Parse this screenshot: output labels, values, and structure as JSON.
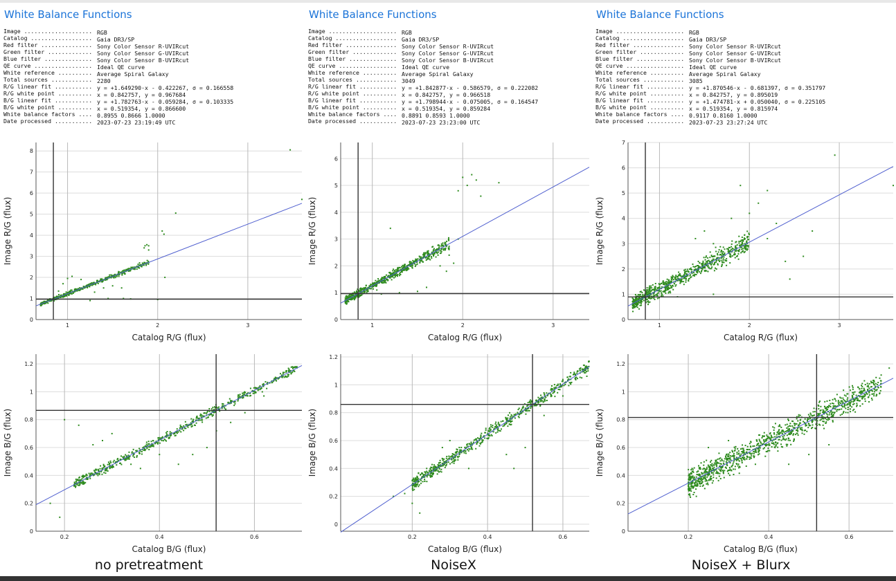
{
  "panels": [
    {
      "title": "White Balance Functions",
      "caption": "no pretreatment",
      "info": [
        {
          "k": "Image ....................",
          "v": "RGB"
        },
        {
          "k": "Catalog ..................",
          "v": "Gaia DR3/SP"
        },
        {
          "k": "Red filter ...............",
          "v": "Sony Color Sensor R-UVIRcut"
        },
        {
          "k": "Green filter .............",
          "v": "Sony Color Sensor G-UVIRcut"
        },
        {
          "k": "Blue filter ..............",
          "v": "Sony Color Sensor B-UVIRcut"
        },
        {
          "k": "QE curve .................",
          "v": "Ideal QE curve"
        },
        {
          "k": "White reference ..........",
          "v": "Average Spiral Galaxy"
        },
        {
          "k": "Total sources ............",
          "v": "2280"
        },
        {
          "k": "R/G linear fit ...........",
          "v": "y = +1.649290·x - 0.422267, σ = 0.166558"
        },
        {
          "k": "R/G white point ..........",
          "v": "x = 0.842757, y = 0.967684"
        },
        {
          "k": "B/G linear fit ...........",
          "v": "y = +1.782763·x - 0.059284, σ = 0.103335"
        },
        {
          "k": "B/G white point ..........",
          "v": "x = 0.519354, y = 0.866600"
        },
        {
          "k": "White balance factors ....",
          "v": "0.8955 0.8666 1.0000"
        },
        {
          "k": "Date processed ...........",
          "v": "2023-07-23 23:19:49 UTC"
        }
      ]
    },
    {
      "title": "White Balance Functions",
      "caption": "NoiseX",
      "info": [
        {
          "k": "Image ....................",
          "v": "RGB"
        },
        {
          "k": "Catalog ..................",
          "v": "Gaia DR3/SP"
        },
        {
          "k": "Red filter ...............",
          "v": "Sony Color Sensor R-UVIRcut"
        },
        {
          "k": "Green filter .............",
          "v": "Sony Color Sensor G-UVIRcut"
        },
        {
          "k": "Blue filter ..............",
          "v": "Sony Color Sensor B-UVIRcut"
        },
        {
          "k": "QE curve .................",
          "v": "Ideal QE curve"
        },
        {
          "k": "White reference ..........",
          "v": "Average Spiral Galaxy"
        },
        {
          "k": "Total sources ............",
          "v": "3049"
        },
        {
          "k": "R/G linear fit ...........",
          "v": "y = +1.842877·x - 0.586579, σ = 0.222082"
        },
        {
          "k": "R/G white point ..........",
          "v": "x = 0.842757, y = 0.966518"
        },
        {
          "k": "B/G linear fit ...........",
          "v": "y = +1.798944·x - 0.075005, σ = 0.164547"
        },
        {
          "k": "B/G white point ..........",
          "v": "x = 0.519354, y = 0.859284"
        },
        {
          "k": "White balance factors ....",
          "v": "0.8891 0.8593 1.0000"
        },
        {
          "k": "Date processed ...........",
          "v": "2023-07-23 23:23:00 UTC"
        }
      ]
    },
    {
      "title": "White Balance Functions",
      "caption": "NoiseX + Blurx",
      "info": [
        {
          "k": "Image ....................",
          "v": "RGB"
        },
        {
          "k": "Catalog ..................",
          "v": "Gaia DR3/SP"
        },
        {
          "k": "Red filter ...............",
          "v": "Sony Color Sensor R-UVIRcut"
        },
        {
          "k": "Green filter .............",
          "v": "Sony Color Sensor G-UVIRcut"
        },
        {
          "k": "Blue filter ..............",
          "v": "Sony Color Sensor B-UVIRcut"
        },
        {
          "k": "QE curve .................",
          "v": "Ideal QE curve"
        },
        {
          "k": "White reference ..........",
          "v": "Average Spiral Galaxy"
        },
        {
          "k": "Total sources ............",
          "v": "3085"
        },
        {
          "k": "R/G linear fit ...........",
          "v": "y = +1.870546·x - 0.681397, σ = 0.351797"
        },
        {
          "k": "R/G white point ..........",
          "v": "x = 0.842757, y = 0.895019"
        },
        {
          "k": "B/G linear fit ...........",
          "v": "y = +1.474781·x + 0.050040, σ = 0.225105"
        },
        {
          "k": "B/G white point ..........",
          "v": "x = 0.519354, y = 0.815974"
        },
        {
          "k": "White balance factors ....",
          "v": "0.9117 0.8160 1.0000"
        },
        {
          "k": "Date processed ...........",
          "v": "2023-07-23 23:27:24 UTC"
        }
      ]
    }
  ],
  "chart_data": [
    {
      "type": "scatter",
      "panel": 0,
      "xlabel": "Catalog R/G (flux)",
      "ylabel": "Image R/G (flux)",
      "xlim": [
        0.65,
        3.6
      ],
      "ylim": [
        0,
        8.4
      ],
      "xticks": [
        1,
        2,
        3
      ],
      "yticks": [
        0,
        1,
        2,
        3,
        4,
        5,
        6,
        7,
        8
      ],
      "fit": {
        "slope": 1.64929,
        "intercept": -0.422267,
        "sigma": 0.166558
      },
      "white_point": {
        "x": 0.842757,
        "y": 0.967684
      },
      "series": [],
      "point_color": "#2e8b1e",
      "line_color": "#4f5fcf",
      "cluster": {
        "x": [
          0.7,
          1.9
        ],
        "spread": 0.06,
        "n": 450
      },
      "points": [
        [
          1.9,
          3.5
        ],
        [
          1.88,
          3.55
        ],
        [
          1.86,
          3.5
        ],
        [
          1.9,
          3.3
        ],
        [
          1.85,
          3.4
        ],
        [
          2.05,
          4.2
        ],
        [
          2.2,
          5.05
        ],
        [
          2.07,
          4.05
        ],
        [
          1.6,
          1.5
        ],
        [
          1.62,
          1.0
        ],
        [
          1.5,
          1.6
        ],
        [
          1.4,
          1.5
        ],
        [
          1.3,
          1.3
        ],
        [
          1.25,
          0.9
        ],
        [
          1.45,
          1.0
        ],
        [
          2.0,
          0.95
        ],
        [
          2.08,
          2.0
        ],
        [
          1.0,
          1.95
        ],
        [
          0.95,
          1.7
        ],
        [
          1.05,
          2.05
        ],
        [
          3.47,
          8.05
        ],
        [
          3.6,
          5.7
        ],
        [
          1.15,
          1.9
        ],
        [
          0.9,
          1.35
        ],
        [
          1.7,
          0.98
        ]
      ]
    },
    {
      "type": "scatter",
      "panel": 0,
      "xlabel": "Catalog B/G (flux)",
      "ylabel": "Image B/G (flux)",
      "xlim": [
        0.14,
        0.7
      ],
      "ylim": [
        0,
        1.27
      ],
      "xticks": [
        0.2,
        0.4,
        0.6
      ],
      "yticks": [
        0,
        0.2,
        0.4,
        0.6,
        0.8,
        1,
        1.2
      ],
      "fit": {
        "slope": 1.782763,
        "intercept": -0.059284,
        "sigma": 0.103335
      },
      "white_point": {
        "x": 0.519354,
        "y": 0.8666
      },
      "series": [],
      "point_color": "#2e8b1e",
      "line_color": "#4f5fcf",
      "cluster": {
        "x": [
          0.22,
          0.69
        ],
        "spread": 0.022,
        "n": 600
      },
      "points": [
        [
          0.2,
          0.8
        ],
        [
          0.23,
          0.76
        ],
        [
          0.19,
          0.1
        ],
        [
          0.17,
          0.2
        ],
        [
          0.26,
          0.62
        ],
        [
          0.28,
          0.65
        ],
        [
          0.3,
          0.7
        ],
        [
          0.47,
          0.55
        ],
        [
          0.5,
          0.6
        ],
        [
          0.44,
          0.48
        ],
        [
          0.52,
          0.72
        ],
        [
          0.58,
          0.85
        ],
        [
          0.62,
          0.97
        ],
        [
          0.68,
          1.14
        ],
        [
          0.34,
          0.48
        ],
        [
          0.36,
          0.45
        ],
        [
          0.4,
          0.55
        ],
        [
          0.55,
          0.78
        ]
      ]
    },
    {
      "type": "scatter",
      "panel": 1,
      "xlabel": "Catalog R/G (flux)",
      "ylabel": "Image R/G (flux)",
      "xlim": [
        0.65,
        3.4
      ],
      "ylim": [
        0,
        6.6
      ],
      "xticks": [
        1,
        2,
        3
      ],
      "yticks": [
        0,
        1,
        2,
        3,
        4,
        5,
        6
      ],
      "fit": {
        "slope": 1.842877,
        "intercept": -0.586579,
        "sigma": 0.222082
      },
      "white_point": {
        "x": 0.842757,
        "y": 0.966518
      },
      "series": [],
      "point_color": "#2e8b1e",
      "line_color": "#4f5fcf",
      "cluster": {
        "x": [
          0.7,
          1.85
        ],
        "spread": 0.1,
        "n": 650
      },
      "points": [
        [
          2.0,
          5.3
        ],
        [
          2.1,
          5.4
        ],
        [
          2.05,
          5.0
        ],
        [
          2.15,
          5.2
        ],
        [
          1.95,
          4.8
        ],
        [
          2.4,
          5.1
        ],
        [
          2.2,
          4.6
        ],
        [
          1.95,
          3.0
        ],
        [
          1.78,
          2.85
        ],
        [
          1.82,
          1.8
        ],
        [
          1.9,
          2.1
        ],
        [
          1.85,
          2.4
        ],
        [
          1.2,
          3.4
        ],
        [
          1.3,
          1.0
        ],
        [
          1.5,
          1.05
        ],
        [
          1.05,
          1.1
        ],
        [
          1.1,
          0.95
        ],
        [
          1.6,
          1.2
        ],
        [
          1.75,
          2.0
        ]
      ]
    },
    {
      "type": "scatter",
      "panel": 1,
      "xlabel": "Catalog B/G (flux)",
      "ylabel": "Image B/G (flux)",
      "xlim": [
        0.01,
        0.67
      ],
      "ylim": [
        -0.05,
        1.22
      ],
      "xticks": [
        0.2,
        0.4,
        0.6
      ],
      "yticks": [
        0,
        0.2,
        0.4,
        0.6,
        0.8,
        1,
        1.2
      ],
      "fit": {
        "slope": 1.798944,
        "intercept": -0.075005,
        "sigma": 0.164547
      },
      "white_point": {
        "x": 0.519354,
        "y": 0.859284
      },
      "series": [],
      "point_color": "#2e8b1e",
      "line_color": "#4f5fcf",
      "cluster": {
        "x": [
          0.2,
          0.67
        ],
        "spread": 0.03,
        "n": 650
      },
      "points": [
        [
          0.15,
          0.2
        ],
        [
          0.18,
          0.22
        ],
        [
          0.2,
          0.15
        ],
        [
          0.22,
          0.08
        ],
        [
          0.3,
          0.6
        ],
        [
          0.28,
          0.55
        ],
        [
          0.45,
          0.5
        ],
        [
          0.5,
          0.55
        ],
        [
          0.47,
          0.4
        ],
        [
          0.55,
          0.78
        ],
        [
          0.6,
          0.92
        ],
        [
          0.65,
          1.05
        ],
        [
          0.42,
          0.7
        ],
        [
          0.35,
          0.4
        ]
      ]
    },
    {
      "type": "scatter",
      "panel": 2,
      "xlabel": "Catalog R/G (flux)",
      "ylabel": "Image R/G (flux)",
      "xlim": [
        0.65,
        3.6
      ],
      "ylim": [
        0,
        7
      ],
      "xticks": [
        1,
        2,
        3
      ],
      "yticks": [
        0,
        1,
        2,
        3,
        4,
        5,
        6,
        7
      ],
      "fit": {
        "slope": 1.870546,
        "intercept": -0.681397,
        "sigma": 0.351797
      },
      "white_point": {
        "x": 0.842757,
        "y": 0.895019
      },
      "series": [],
      "point_color": "#2e8b1e",
      "line_color": "#4f5fcf",
      "cluster": {
        "x": [
          0.7,
          2.0
        ],
        "spread": 0.2,
        "n": 750
      },
      "points": [
        [
          2.95,
          6.5
        ],
        [
          3.6,
          5.3
        ],
        [
          2.2,
          5.1
        ],
        [
          2.1,
          4.6
        ],
        [
          1.9,
          5.3
        ],
        [
          2.0,
          4.2
        ],
        [
          2.3,
          3.8
        ],
        [
          1.8,
          4.0
        ],
        [
          1.5,
          3.5
        ],
        [
          2.4,
          2.3
        ],
        [
          2.6,
          2.5
        ],
        [
          2.7,
          3.5
        ],
        [
          2.45,
          1.6
        ],
        [
          1.6,
          1.0
        ],
        [
          1.2,
          0.9
        ],
        [
          1.4,
          3.2
        ],
        [
          1.6,
          3.0
        ],
        [
          2.2,
          3.2
        ]
      ]
    },
    {
      "type": "scatter",
      "panel": 2,
      "xlabel": "Catalog B/G (flux)",
      "ylabel": "Image B/G (flux)",
      "xlim": [
        0.05,
        0.71
      ],
      "ylim": [
        0,
        1.27
      ],
      "xticks": [
        0.2,
        0.4,
        0.6
      ],
      "yticks": [
        0,
        0.2,
        0.4,
        0.6,
        0.8,
        1,
        1.2
      ],
      "fit": {
        "slope": 1.474781,
        "intercept": 0.05004,
        "sigma": 0.225105
      },
      "white_point": {
        "x": 0.519354,
        "y": 0.815974
      },
      "series": [],
      "point_color": "#2e8b1e",
      "line_color": "#4f5fcf",
      "cluster": {
        "x": [
          0.2,
          0.68
        ],
        "spread": 0.06,
        "n": 1100
      },
      "points": [
        [
          0.7,
          1.17
        ],
        [
          0.68,
          1.12
        ],
        [
          0.66,
          1.08
        ],
        [
          0.65,
          1.0
        ],
        [
          0.62,
          0.95
        ],
        [
          0.58,
          0.92
        ],
        [
          0.25,
          0.6
        ],
        [
          0.3,
          0.65
        ],
        [
          0.22,
          0.25
        ],
        [
          0.2,
          0.3
        ],
        [
          0.5,
          0.55
        ],
        [
          0.45,
          0.48
        ],
        [
          0.55,
          0.62
        ]
      ]
    }
  ]
}
